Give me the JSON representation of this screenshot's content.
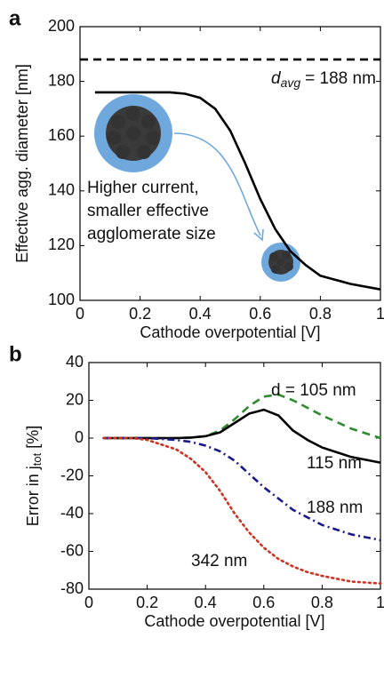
{
  "chart_data": [
    {
      "type": "line",
      "panel_label": "a",
      "x_label": "Cathode overpotential [V]",
      "y_label": "Effective agg. diameter [nm]",
      "xlim": [
        0,
        1
      ],
      "xticks": [
        0,
        0.2,
        0.4,
        0.6,
        0.8,
        1
      ],
      "ylim": [
        100,
        200
      ],
      "yticks": [
        100,
        120,
        140,
        160,
        180,
        200
      ],
      "x": [
        0.05,
        0.1,
        0.2,
        0.3,
        0.35,
        0.4,
        0.45,
        0.5,
        0.55,
        0.6,
        0.65,
        0.7,
        0.75,
        0.8,
        0.9,
        1.0
      ],
      "series": [
        {
          "color": "#000000",
          "dash": "solid",
          "values": [
            176,
            176,
            176,
            176,
            175.5,
            174,
            170,
            162,
            150,
            137,
            126,
            118,
            113,
            109,
            106,
            104
          ]
        }
      ],
      "reference_line": {
        "value": 188,
        "color": "#000000",
        "dash": "dashed",
        "label_main": "d",
        "label_sub": "avg",
        "label_end": "= 188 nm"
      },
      "annotation": [
        "Higher current,",
        "smaller effective",
        "agglomerate size"
      ]
    },
    {
      "type": "line",
      "panel_label": "b",
      "x_label": "Cathode overpotential [V]",
      "y_label": "Error in j",
      "y_label_sub": "tot",
      "y_label_end": "[%]",
      "xlim": [
        0,
        1
      ],
      "xticks": [
        0,
        0.2,
        0.4,
        0.6,
        0.8,
        1
      ],
      "ylim": [
        -80,
        40
      ],
      "yticks": [
        -80,
        -60,
        -40,
        -20,
        0,
        20,
        40
      ],
      "x": [
        0.05,
        0.1,
        0.15,
        0.2,
        0.3,
        0.35,
        0.4,
        0.45,
        0.5,
        0.55,
        0.6,
        0.65,
        0.7,
        0.75,
        0.8,
        0.9,
        1.0
      ],
      "series": [
        {
          "name": "d = 105 nm",
          "color": "#2e8b2e",
          "dash": "dashed",
          "values": [
            0,
            0,
            0,
            0,
            0,
            0.3,
            1,
            4,
            10,
            17,
            22,
            23,
            20,
            16,
            12,
            5,
            0
          ]
        },
        {
          "name": "115 nm",
          "color": "#000000",
          "dash": "solid",
          "values": [
            0,
            0,
            0,
            0,
            0,
            0.3,
            1,
            3,
            8,
            13,
            15,
            12,
            4,
            -1,
            -5,
            -10,
            -13
          ]
        },
        {
          "name": "188 nm",
          "color": "#1a1a8c",
          "dash": "dashdot",
          "values": [
            0,
            0,
            0,
            0,
            -1,
            -2,
            -4,
            -7,
            -12,
            -19,
            -26,
            -32,
            -38,
            -42,
            -46,
            -51,
            -54
          ]
        },
        {
          "name": "342 nm",
          "color": "#cc3322",
          "dash": "dotted",
          "values": [
            0,
            0,
            0,
            -1,
            -6,
            -11,
            -18,
            -28,
            -40,
            -50,
            -58,
            -64,
            -68,
            -71,
            -73,
            -76,
            -77
          ]
        }
      ]
    }
  ]
}
